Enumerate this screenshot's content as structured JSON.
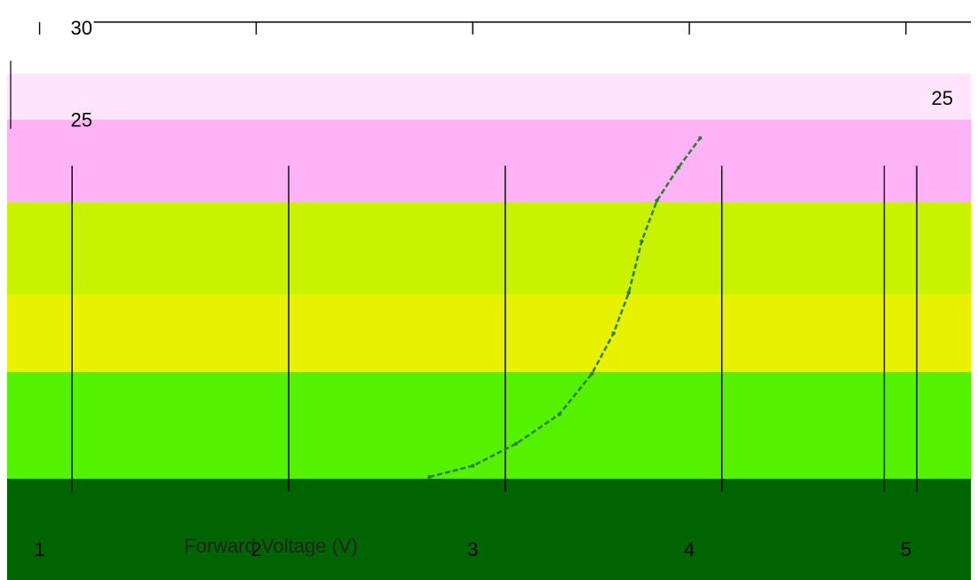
{
  "chart_data": {
    "type": "area",
    "title": "",
    "xlabel": "Forward Voltage (V)",
    "ylabel": "",
    "xlim": [
      0.85,
      5.3
    ],
    "ylim": [
      0,
      31.5
    ],
    "x_ticks": [
      1,
      2,
      3,
      4,
      5
    ],
    "x_tick_labels": [
      "1",
      "2",
      "3",
      "4",
      "5"
    ],
    "y_ticks": [
      25,
      30
    ],
    "y_tick_labels": [
      "25",
      "30"
    ],
    "right_y_tick_labels": [
      "25"
    ],
    "grid": false,
    "legend": "none",
    "bands": [
      {
        "y0": 25,
        "y1": 27.5,
        "color": "#ffe4fb"
      },
      {
        "y0": 20.5,
        "y1": 25,
        "color": "#ffb3f7"
      },
      {
        "y0": 15.5,
        "y1": 20.5,
        "color": "#c9f200"
      },
      {
        "y0": 11.3,
        "y1": 15.5,
        "color": "#e8f200"
      },
      {
        "y0": 5.5,
        "y1": 11.3,
        "color": "#54f200"
      },
      {
        "y0": 0,
        "y1": 5.5,
        "color": "#006400"
      }
    ],
    "series": [
      {
        "color": "#2e7d32",
        "x": [
          2.8,
          3.0,
          3.2,
          3.4,
          3.55,
          3.65,
          3.72,
          3.78,
          3.85,
          3.95,
          4.05
        ],
        "y": [
          5.6,
          6.2,
          7.4,
          9.0,
          11.2,
          13.4,
          15.6,
          18.4,
          20.6,
          22.4,
          24.0
        ]
      }
    ],
    "vertical_markers": {
      "color": "#000000",
      "x": [
        1.15,
        2.15,
        3.15,
        4.15,
        4.9,
        5.05
      ]
    }
  }
}
